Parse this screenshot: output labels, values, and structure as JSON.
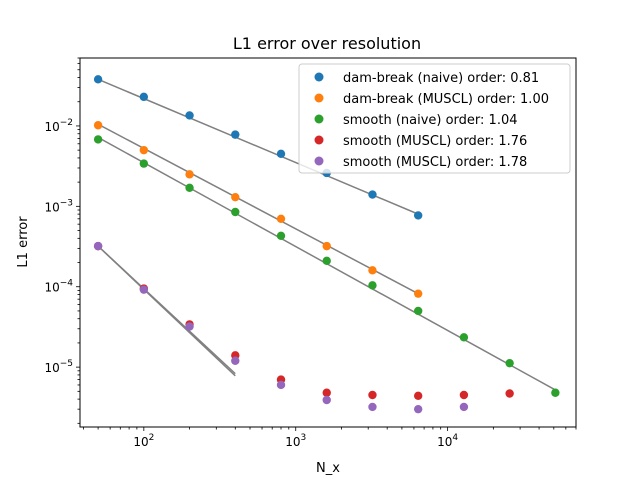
{
  "chart_data": {
    "type": "scatter",
    "title": "L1 error over resolution",
    "xlabel": "N_x",
    "ylabel": "L1 error",
    "xscale": "log",
    "yscale": "log",
    "xlim": [
      38,
      70000
    ],
    "ylim": [
      1.8e-06,
      0.07
    ],
    "x_ticks": [
      {
        "value": 100,
        "base": "10",
        "exp": "2"
      },
      {
        "value": 1000,
        "base": "10",
        "exp": "3"
      },
      {
        "value": 10000,
        "base": "10",
        "exp": "4"
      }
    ],
    "y_ticks": [
      {
        "value": 1e-05,
        "base": "10",
        "exp": "−5"
      },
      {
        "value": 0.0001,
        "base": "10",
        "exp": "−4"
      },
      {
        "value": 0.001,
        "base": "10",
        "exp": "−3"
      },
      {
        "value": 0.01,
        "base": "10",
        "exp": "−2"
      }
    ],
    "grid": false,
    "legend_position": "top-right",
    "fit_line_color": "#808080",
    "series": [
      {
        "name": "dam-break (naive) order: 0.81",
        "color": "#1f77b4",
        "x": [
          50,
          100,
          200,
          400,
          800,
          1600,
          3200,
          6400
        ],
        "y": [
          0.038,
          0.023,
          0.0135,
          0.0078,
          0.0045,
          0.0026,
          0.0014,
          0.00077
        ],
        "fit": {
          "x": [
            50,
            6400
          ],
          "y": [
            0.038,
            0.0008
          ]
        }
      },
      {
        "name": "dam-break (MUSCL) order: 1.00",
        "color": "#ff7f0e",
        "x": [
          50,
          100,
          200,
          400,
          800,
          1600,
          3200,
          6400
        ],
        "y": [
          0.0102,
          0.005,
          0.0025,
          0.0013,
          0.0007,
          0.00032,
          0.00016,
          8.2e-05
        ],
        "fit": {
          "x": [
            50,
            6400
          ],
          "y": [
            0.0105,
            8.2e-05
          ]
        }
      },
      {
        "name": "smooth (naive) order: 1.04",
        "color": "#2ca02c",
        "x": [
          50,
          100,
          200,
          400,
          800,
          1600,
          3200,
          6400,
          12800,
          25600,
          51200
        ],
        "y": [
          0.0068,
          0.0034,
          0.0017,
          0.00085,
          0.00043,
          0.00021,
          0.000104,
          5e-05,
          2.35e-05,
          1.12e-05,
          4.8e-06
        ],
        "fit": {
          "x": [
            50,
            51200
          ],
          "y": [
            0.0072,
            5.2e-06
          ]
        }
      },
      {
        "name": "smooth (MUSCL) order: 1.76",
        "color": "#d62728",
        "x": [
          50,
          100,
          200,
          400,
          800,
          1600,
          3200,
          6400,
          12800,
          25600
        ],
        "y": [
          0.00032,
          9.5e-05,
          3.4e-05,
          1.4e-05,
          7e-06,
          4.8e-06,
          4.5e-06,
          4.4e-06,
          4.5e-06,
          4.7e-06
        ],
        "fit": {
          "x": [
            50,
            400
          ],
          "y": [
            0.00032,
            8.3e-06
          ]
        }
      },
      {
        "name": "smooth (MUSCL) order: 1.78",
        "color": "#9467bd",
        "x": [
          50,
          100,
          200,
          400,
          800,
          1600,
          3200,
          6400,
          12800
        ],
        "y": [
          0.00032,
          9.2e-05,
          3.2e-05,
          1.2e-05,
          6e-06,
          3.9e-06,
          3.2e-06,
          3e-06,
          3.2e-06
        ],
        "fit": {
          "x": [
            50,
            400
          ],
          "y": [
            0.00032,
            7.8e-06
          ]
        }
      }
    ]
  }
}
